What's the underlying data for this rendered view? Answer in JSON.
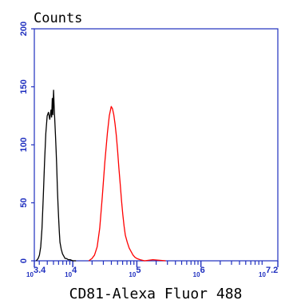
{
  "chart_data": {
    "type": "line",
    "ylabel": "Counts",
    "xlabel": "CD81-Alexa Fluor 488",
    "x_scale": "log",
    "xlim": [
      3.4,
      7.2
    ],
    "ylim": [
      0,
      200
    ],
    "y_ticks": [
      "0",
      "50",
      "100",
      "150",
      "200"
    ],
    "x_ticks": [
      {
        "base": "10",
        "exp": "3.4",
        "value": 3.4
      },
      {
        "base": "10",
        "exp": "4",
        "value": 4
      },
      {
        "base": "10",
        "exp": "5",
        "value": 5
      },
      {
        "base": "10",
        "exp": "6",
        "value": 6
      },
      {
        "base": "10",
        "exp": "7.2",
        "value": 7.2
      }
    ],
    "grid": false,
    "series": [
      {
        "color": "#000000",
        "x": [
          3.43,
          3.46,
          3.48,
          3.5,
          3.52,
          3.54,
          3.56,
          3.58,
          3.6,
          3.62,
          3.64,
          3.66,
          3.67,
          3.68,
          3.69,
          3.7,
          3.71,
          3.72,
          3.73,
          3.74,
          3.75,
          3.76,
          3.77,
          3.78,
          3.79,
          3.8,
          3.82,
          3.84,
          3.86,
          3.88,
          3.9,
          3.93,
          3.96,
          4.0,
          4.05
        ],
        "y": [
          0,
          2,
          5,
          12,
          28,
          55,
          85,
          110,
          125,
          128,
          122,
          130,
          124,
          140,
          126,
          147,
          132,
          120,
          108,
          95,
          80,
          62,
          48,
          36,
          25,
          16,
          10,
          6,
          4,
          2,
          2,
          1,
          1,
          0,
          0
        ]
      },
      {
        "color": "#ff0000",
        "x": [
          4.25,
          4.3,
          4.34,
          4.38,
          4.42,
          4.46,
          4.5,
          4.54,
          4.57,
          4.6,
          4.62,
          4.64,
          4.66,
          4.68,
          4.7,
          4.72,
          4.74,
          4.76,
          4.78,
          4.8,
          4.82,
          4.85,
          4.88,
          4.91,
          4.94,
          4.97,
          5.0,
          5.05,
          5.12,
          5.25,
          5.45
        ],
        "y": [
          0,
          2,
          5,
          12,
          28,
          55,
          85,
          110,
          125,
          133,
          131,
          126,
          118,
          108,
          95,
          80,
          66,
          52,
          40,
          30,
          22,
          16,
          11,
          8,
          5,
          3,
          2,
          1,
          0,
          1,
          0
        ]
      }
    ]
  }
}
